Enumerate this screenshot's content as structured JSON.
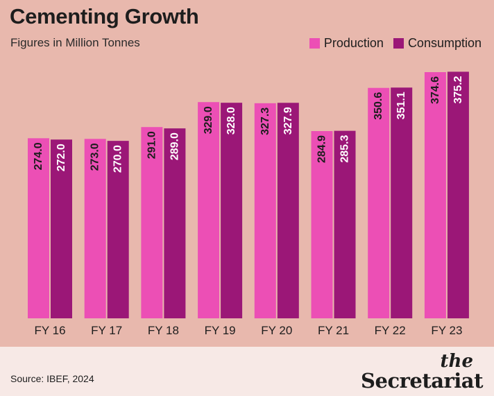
{
  "header": {
    "title": "Cementing Growth",
    "subtitle": "Figures in Million Tonnes"
  },
  "legend": [
    {
      "label": "Production",
      "color": "#ec4fb5"
    },
    {
      "label": "Consumption",
      "color": "#9b1777"
    }
  ],
  "footer": {
    "source": "Source: IBEF, 2024",
    "logo": {
      "line1": "the",
      "line2": "Secretariat"
    }
  },
  "chart_data": {
    "type": "bar",
    "title": "Cementing Growth",
    "subtitle": "Figures in Million Tonnes",
    "categories": [
      "FY 16",
      "FY 17",
      "FY 18",
      "FY 19",
      "FY 20",
      "FY 21",
      "FY 22",
      "FY 23"
    ],
    "series": [
      {
        "name": "Production",
        "color": "#ec4fb5",
        "values": [
          274.0,
          273.0,
          291.0,
          329.0,
          327.3,
          284.9,
          350.6,
          374.6
        ]
      },
      {
        "name": "Consumption",
        "color": "#9b1777",
        "values": [
          272.0,
          270.0,
          289.0,
          328.0,
          327.9,
          285.3,
          351.1,
          375.2
        ]
      }
    ],
    "labels": [
      [
        "274.0",
        "273.0",
        "291.0",
        "329.0",
        "327.3",
        "284.9",
        "350.6",
        "374.6"
      ],
      [
        "272.0",
        "270.0",
        "289.0",
        "328.0",
        "327.9",
        "285.3",
        "351.1",
        "375.2"
      ]
    ],
    "legend": "top-right",
    "grid": false
  }
}
